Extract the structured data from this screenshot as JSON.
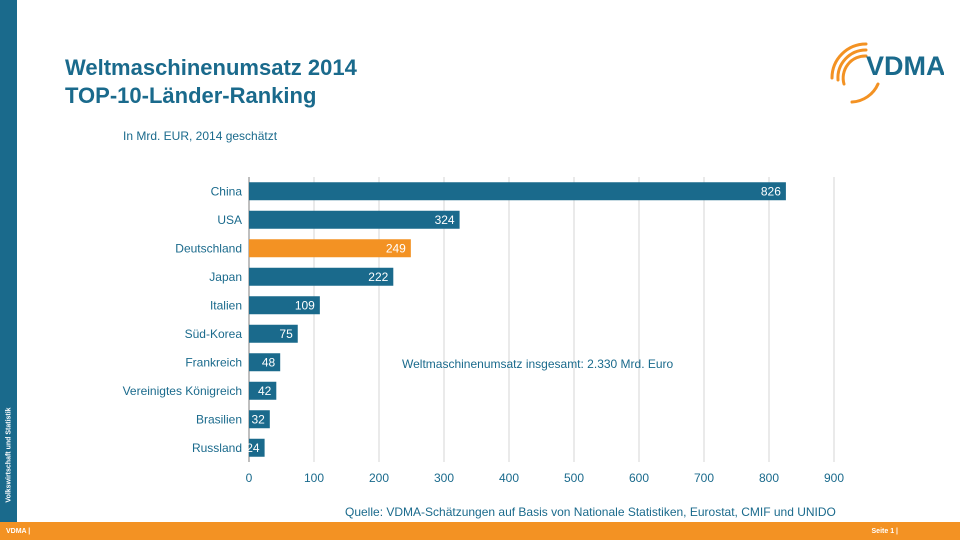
{
  "side_label": "Volkswirtschaft und Statistik",
  "title_line1": "Weltmaschinenumsatz 2014",
  "title_line2": "TOP-10-Länder-Ranking",
  "subtitle": "In Mrd. EUR, 2014 geschätzt",
  "logo_text": "VDMA",
  "footer_left": "VDMA |",
  "footer_right": "Seite 1 |",
  "colors": {
    "primary": "#1a6a8c",
    "highlight": "#f39223",
    "footer": "#f39223"
  },
  "chart_data": {
    "type": "bar",
    "orientation": "horizontal",
    "categories": [
      "China",
      "USA",
      "Deutschland",
      "Japan",
      "Italien",
      "Süd-Korea",
      "Frankreich",
      "Vereinigtes Königreich",
      "Brasilien",
      "Russland"
    ],
    "values": [
      826,
      324,
      249,
      222,
      109,
      75,
      48,
      42,
      32,
      24
    ],
    "highlight_category": "Deutschland",
    "xlim": [
      0,
      900
    ],
    "x_ticks": [
      "0",
      "100",
      "200",
      "300",
      "400",
      "500",
      "600",
      "700",
      "800",
      "900"
    ],
    "grid": "vertical",
    "annotation": "Weltmaschinenumsatz  insgesamt: 2.330 Mrd. Euro",
    "source": "Quelle:  VDMA-Schätzungen auf Basis von Nationale Statistiken, Eurostat, CMIF und UNIDO"
  }
}
